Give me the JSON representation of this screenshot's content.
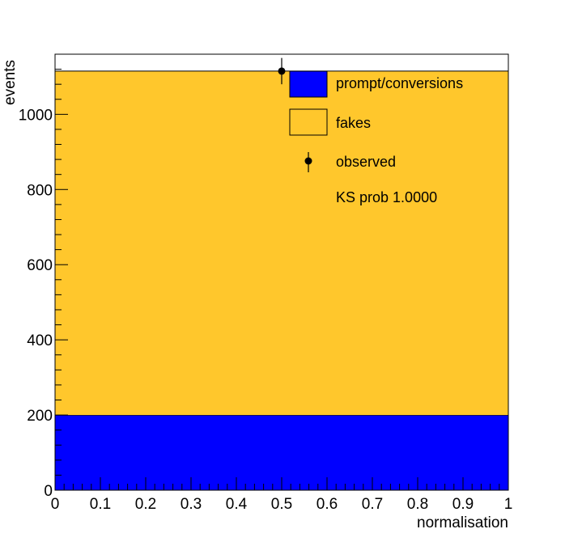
{
  "chart_data": {
    "type": "area",
    "xlabel": "normalisation",
    "ylabel": "events",
    "xlim": [
      0,
      1
    ],
    "ylim": [
      0,
      1160
    ],
    "x_ticks": [
      "0",
      "0.1",
      "0.2",
      "0.3",
      "0.4",
      "0.5",
      "0.6",
      "0.7",
      "0.8",
      "0.9",
      "1"
    ],
    "y_ticks": [
      "0",
      "200",
      "400",
      "600",
      "800",
      "1000"
    ],
    "stacked": true,
    "series": [
      {
        "name": "prompt/conversions",
        "values": [
          200
        ],
        "color": "#0000ff"
      },
      {
        "name": "fakes",
        "values": [
          915
        ],
        "color": "#ffc72c"
      }
    ],
    "observed": {
      "name": "observed",
      "x": 0.5,
      "y": 1115,
      "err": 35,
      "color": "#000000"
    },
    "annotation": "KS prob 1.0000",
    "legend_position": "top-right",
    "grid": false
  }
}
